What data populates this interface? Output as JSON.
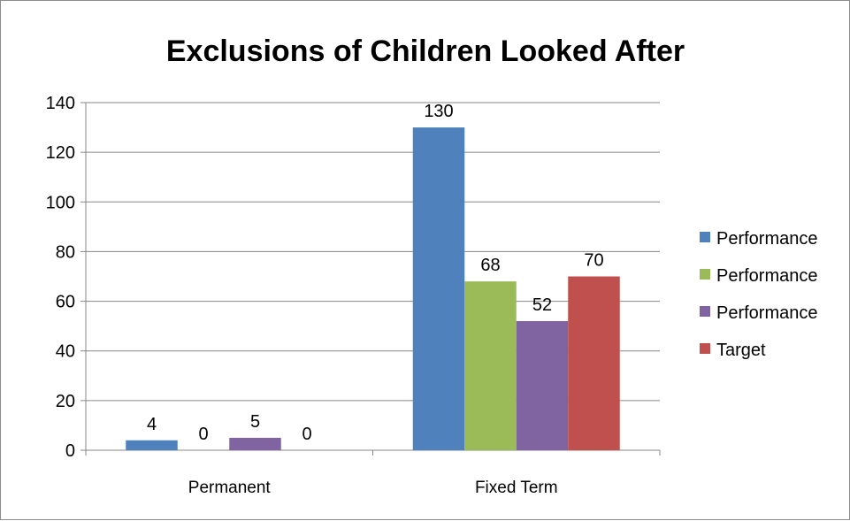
{
  "chart_data": {
    "type": "bar",
    "title": "Exclusions of Children Looked After",
    "xlabel": "",
    "ylabel": "",
    "categories": [
      "Permanent",
      "Fixed Term"
    ],
    "series": [
      {
        "name": "Performance",
        "color": "#4f81bd",
        "values": [
          4,
          130
        ]
      },
      {
        "name": "Performance",
        "color": "#9bbb59",
        "values": [
          0,
          68
        ]
      },
      {
        "name": "Performance",
        "color": "#8064a2",
        "values": [
          5,
          52
        ]
      },
      {
        "name": "Target",
        "color": "#c0504d",
        "values": [
          0,
          70
        ]
      }
    ],
    "ylim": [
      0,
      140
    ],
    "yticks": [
      0,
      20,
      40,
      60,
      80,
      100,
      120,
      140
    ],
    "grid": true,
    "legend": "right",
    "data_labels": true
  }
}
